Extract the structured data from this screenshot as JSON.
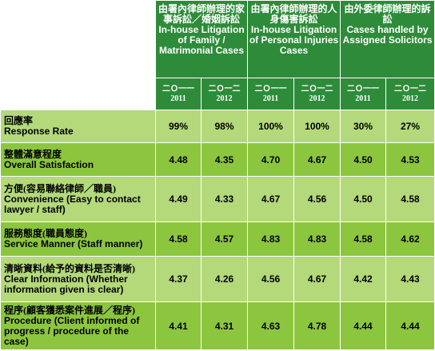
{
  "groups": [
    {
      "zh": "由署內律師辦理的家事訴訟／婚姻訴訟",
      "en": "In-house Litigation of Family / Matrimonial Cases"
    },
    {
      "zh": "由署內律師辦理的人身傷害訴訟",
      "en": "In-house Litigation of Personal Injuries Cases"
    },
    {
      "zh": "由外委律師辦理的訴訟",
      "en": "Cases handled by Assigned Solicitors"
    }
  ],
  "years": [
    {
      "zh": "二Ｏ一一",
      "num": "2011"
    },
    {
      "zh": "二Ｏ一二",
      "num": "2012"
    },
    {
      "zh": "二Ｏ一一",
      "num": "2011"
    },
    {
      "zh": "二Ｏ一二",
      "num": "2012"
    },
    {
      "zh": "二Ｏ一一",
      "num": "2011"
    },
    {
      "zh": "二Ｏ一二",
      "num": "2012"
    }
  ],
  "rows": [
    {
      "zh": "回應率",
      "en": "Response Rate",
      "values": [
        "99%",
        "98%",
        "100%",
        "100%",
        "30%",
        "27%"
      ]
    },
    {
      "zh": "整體滿意程度",
      "en": "Overall Satisfaction",
      "values": [
        "4.48",
        "4.35",
        "4.70",
        "4.67",
        "4.50",
        "4.53"
      ]
    },
    {
      "zh": "方便(容易聯絡律師／職員)",
      "en": "Convenience (Easy to contact lawyer / staff)",
      "values": [
        "4.49",
        "4.33",
        "4.67",
        "4.56",
        "4.50",
        "4.58"
      ]
    },
    {
      "zh": "服務態度(職員態度)",
      "en": "Service Manner (Staff manner)",
      "values": [
        "4.58",
        "4.57",
        "4.83",
        "4.83",
        "4.58",
        "4.62"
      ]
    },
    {
      "zh": "清晰資料(給予的資料是否清晰)",
      "en": "Clear Information (Whether information given is clear)",
      "values": [
        "4.37",
        "4.26",
        "4.56",
        "4.67",
        "4.42",
        "4.43"
      ]
    },
    {
      "zh": "程序(顧客獲悉案件進展／程序)",
      "en": "Procedure (Client informed of progress / procedure of the case)",
      "values": [
        "4.41",
        "4.31",
        "4.63",
        "4.78",
        "4.44",
        "4.44"
      ]
    }
  ],
  "colors": {
    "header": "#2e8b3a",
    "row_light": "#b3d97a",
    "row_dark": "#8cc63f"
  }
}
